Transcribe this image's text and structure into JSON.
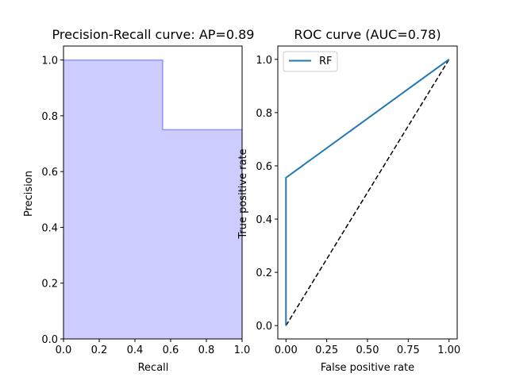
{
  "chart_data": [
    {
      "type": "area",
      "title": "Precision-Recall curve: AP=0.89",
      "xlabel": "Recall",
      "ylabel": "Precision",
      "xlim": [
        0.0,
        1.0
      ],
      "ylim": [
        0.0,
        1.05
      ],
      "grid": false,
      "x_ticks": [
        "0.0",
        "0.2",
        "0.4",
        "0.6",
        "0.8",
        "1.0"
      ],
      "y_ticks": [
        "0.0",
        "0.2",
        "0.4",
        "0.6",
        "0.8",
        "1.0"
      ],
      "step": "post",
      "series": [
        {
          "x": [
            0.0,
            0.0,
            0.5556,
            0.5556,
            1.0
          ],
          "y": [
            1.0,
            1.0,
            1.0,
            0.75,
            0.75
          ],
          "color": "#0000ff",
          "fill": "#ccccff"
        }
      ]
    },
    {
      "type": "line",
      "title": "ROC curve (AUC=0.78)",
      "xlabel": "False positive rate",
      "ylabel": "True positive rate",
      "xlim": [
        -0.05,
        1.05
      ],
      "ylim": [
        -0.05,
        1.05
      ],
      "grid": false,
      "legend": "upper-left",
      "x_ticks": [
        "0.00",
        "0.25",
        "0.50",
        "0.75",
        "1.00"
      ],
      "y_ticks": [
        "0.0",
        "0.2",
        "0.4",
        "0.6",
        "0.8",
        "1.0"
      ],
      "series": [
        {
          "name": "RF",
          "x": [
            0.0,
            0.0,
            1.0
          ],
          "y": [
            0.0,
            0.5556,
            1.0
          ],
          "color": "#1f77b4"
        }
      ],
      "reference_line": {
        "x": [
          0.0,
          1.0
        ],
        "y": [
          0.0,
          1.0
        ],
        "color": "#000000",
        "style": "dashed"
      }
    }
  ]
}
